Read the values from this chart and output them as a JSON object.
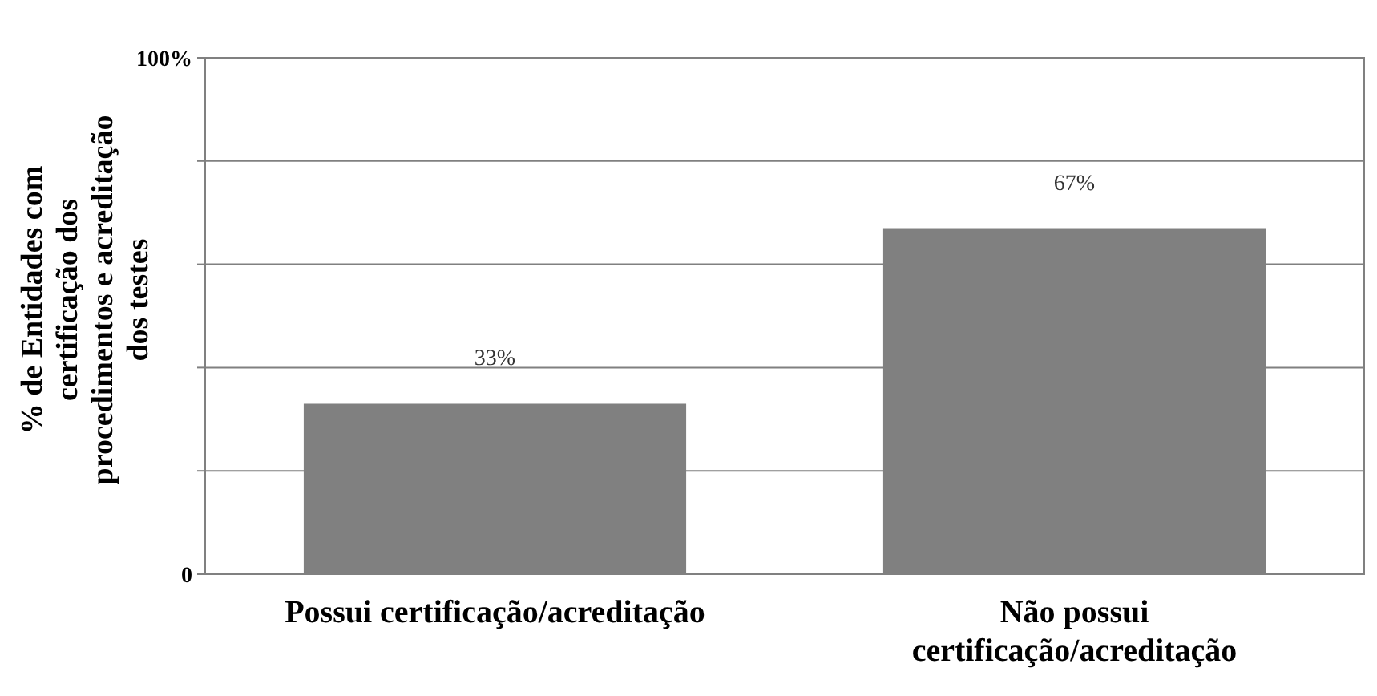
{
  "chart_data": {
    "type": "bar",
    "ylabel": "% de Entidades com certificação dos procedimentos e acreditação dos testes",
    "categories": [
      "Possui certificação/acreditação",
      "Não possui certificação/acreditação"
    ],
    "values": [
      33,
      67
    ],
    "color": "#808080",
    "value_labels": [
      "33%",
      "67%"
    ],
    "ylim": [
      0,
      100
    ],
    "yticks": [
      {
        "value": 0,
        "label": "0"
      },
      {
        "value": 20,
        "label": null
      },
      {
        "value": 40,
        "label": null
      },
      {
        "value": 60,
        "label": null
      },
      {
        "value": 80,
        "label": null
      },
      {
        "value": 100,
        "label": "100%"
      }
    ],
    "grid": "y"
  }
}
